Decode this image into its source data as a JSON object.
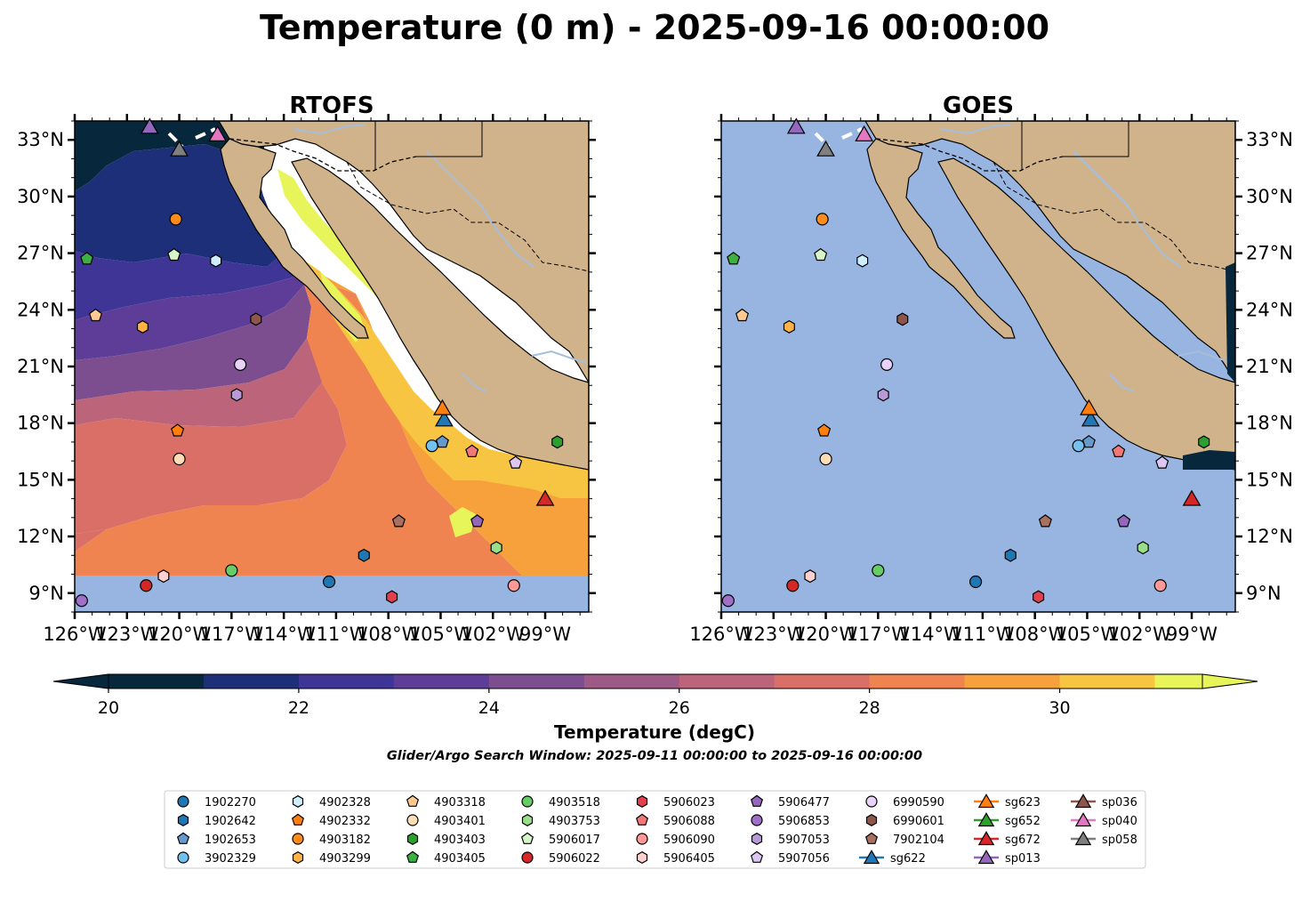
{
  "chart_data": {
    "type": "heatmap",
    "title": "Temperature (0 m) - 2025-09-16 00:00:00",
    "panels": [
      {
        "id": "rtofs",
        "title": "RTOFS"
      },
      {
        "id": "goes",
        "title": "GOES"
      }
    ],
    "lon_ticks": [
      "126°W",
      "123°W",
      "120°W",
      "117°W",
      "114°W",
      "111°W",
      "108°W",
      "105°W",
      "102°W",
      "99°W"
    ],
    "lon_tick_values": [
      -126,
      -123,
      -120,
      -117,
      -114,
      -111,
      -108,
      -105,
      -102,
      -99
    ],
    "lat_ticks": [
      "9°N",
      "12°N",
      "15°N",
      "18°N",
      "21°N",
      "24°N",
      "27°N",
      "30°N",
      "33°N"
    ],
    "lat_tick_values": [
      9,
      12,
      15,
      18,
      21,
      24,
      27,
      30,
      33
    ],
    "extent": {
      "lon": [
        -126,
        -96.5
      ],
      "lat": [
        8,
        34
      ]
    },
    "colorbar": {
      "label": "Temperature (degC)",
      "range": [
        20,
        31.5
      ],
      "levels": [
        20,
        21,
        22,
        23,
        24,
        25,
        26,
        27,
        28,
        29,
        30,
        31
      ],
      "tick_values": [
        20,
        22,
        24,
        26,
        28,
        30
      ],
      "tick_labels": [
        "20",
        "22",
        "24",
        "26",
        "28",
        "30"
      ],
      "colors": [
        "#07273d",
        "#1c2f78",
        "#3e3597",
        "#5d3d97",
        "#7c4d8f",
        "#9d5a86",
        "#bc6479",
        "#d96f67",
        "#ef8450",
        "#f7a13c",
        "#f8c542",
        "#e7f55a"
      ],
      "extend": "both"
    },
    "subtitle": "Glider/Argo Search Window: 2025-09-11 00:00:00 to 2025-09-16 00:00:00",
    "colors": {
      "land": "#d0b38b",
      "ocean_nodata": "#97b5e0",
      "river": "#a6bedc"
    },
    "floats": [
      {
        "id": "1902270",
        "marker": "circle",
        "color": "#1f77b4",
        "lon": -111.4,
        "lat": 9.6
      },
      {
        "id": "1902642",
        "marker": "hexagon",
        "color": "#1f77b4",
        "lon": -109.4,
        "lat": 11.0
      },
      {
        "id": "1902653",
        "marker": "pentagon",
        "color": "#6699cc",
        "lon": -104.9,
        "lat": 17.0
      },
      {
        "id": "3902329",
        "marker": "circle",
        "color": "#74c0ee",
        "lon": -105.5,
        "lat": 16.8
      },
      {
        "id": "4902328",
        "marker": "hexagon",
        "color": "#cfeefc",
        "lon": -117.9,
        "lat": 26.6
      },
      {
        "id": "4902332",
        "marker": "pentagon",
        "color": "#ff7f0e",
        "lon": -120.1,
        "lat": 17.6
      },
      {
        "id": "4903182",
        "marker": "circle",
        "color": "#ff8c1a",
        "lon": -120.2,
        "lat": 28.8
      },
      {
        "id": "4903299",
        "marker": "hexagon",
        "color": "#ffb347",
        "lon": -122.1,
        "lat": 23.1
      },
      {
        "id": "4903318",
        "marker": "pentagon",
        "color": "#ffc891",
        "lon": -124.8,
        "lat": 23.7
      },
      {
        "id": "4903401",
        "marker": "circle",
        "color": "#ffdcb8",
        "lon": -120.0,
        "lat": 16.1
      },
      {
        "id": "4903403",
        "marker": "hexagon",
        "color": "#2ca02c",
        "lon": -98.3,
        "lat": 17.0
      },
      {
        "id": "4903405",
        "marker": "pentagon",
        "color": "#3cb043",
        "lon": -125.3,
        "lat": 26.7
      },
      {
        "id": "4903518",
        "marker": "circle",
        "color": "#66cc66",
        "lon": -117.0,
        "lat": 10.2
      },
      {
        "id": "4903753",
        "marker": "hexagon",
        "color": "#98df8a",
        "lon": -101.8,
        "lat": 11.4
      },
      {
        "id": "5906017",
        "marker": "pentagon",
        "color": "#d6f5c8",
        "lon": -120.3,
        "lat": 26.9
      },
      {
        "id": "5906022",
        "marker": "circle",
        "color": "#d62728",
        "lon": -121.9,
        "lat": 9.4
      },
      {
        "id": "5906023",
        "marker": "hexagon",
        "color": "#e04050",
        "lon": -107.8,
        "lat": 8.8
      },
      {
        "id": "5906088",
        "marker": "pentagon",
        "color": "#f07878",
        "lon": -103.2,
        "lat": 16.5
      },
      {
        "id": "5906090",
        "marker": "circle",
        "color": "#ff9896",
        "lon": -100.8,
        "lat": 9.4
      },
      {
        "id": "5906405",
        "marker": "hexagon",
        "color": "#ffd0d0",
        "lon": -120.9,
        "lat": 9.9
      },
      {
        "id": "5906477",
        "marker": "pentagon",
        "color": "#9467bd",
        "lon": -102.9,
        "lat": 12.8
      },
      {
        "id": "5906853",
        "marker": "circle",
        "color": "#a070c8",
        "lon": -125.6,
        "lat": 8.6
      },
      {
        "id": "5907053",
        "marker": "hexagon",
        "color": "#b89ad8",
        "lon": -116.7,
        "lat": 19.5
      },
      {
        "id": "5907056",
        "marker": "pentagon",
        "color": "#dcc6f2",
        "lon": -100.7,
        "lat": 15.9
      },
      {
        "id": "6990590",
        "marker": "circle",
        "color": "#e8d2f7",
        "lon": -116.5,
        "lat": 21.1
      },
      {
        "id": "6990601",
        "marker": "hexagon",
        "color": "#8c564b",
        "lon": -115.6,
        "lat": 23.5
      },
      {
        "id": "7902104",
        "marker": "pentagon",
        "color": "#a87060",
        "lon": -107.4,
        "lat": 12.8
      }
    ],
    "gliders": [
      {
        "id": "sg622",
        "color": "#1f77b4",
        "lon": -104.8,
        "lat": 18.2
      },
      {
        "id": "sg623",
        "color": "#ff7f0e",
        "lon": -104.9,
        "lat": 18.8
      },
      {
        "id": "sg652",
        "color": "#2ca02c"
      },
      {
        "id": "sg672",
        "color": "#d62728",
        "lon": -99.0,
        "lat": 14.0
      },
      {
        "id": "sp013",
        "color": "#9467bd",
        "lon": -121.7,
        "lat": 33.7
      },
      {
        "id": "sp036",
        "color": "#8c564b"
      },
      {
        "id": "sp040",
        "color": "#e377c2",
        "lon": -117.8,
        "lat": 33.3
      },
      {
        "id": "sp058",
        "color": "#7f7f7f",
        "lon": -120.0,
        "lat": 32.5
      }
    ]
  }
}
